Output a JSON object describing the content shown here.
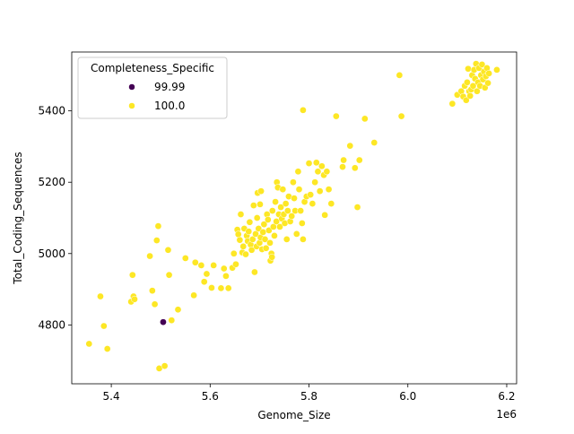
{
  "chart_data": {
    "type": "scatter",
    "xlabel": "Genome_Size",
    "ylabel": "Total_Coding_Sequences",
    "x_offset_label": "1e6",
    "xlim": [
      5.32,
      6.22
    ],
    "ylim": [
      4635,
      5565
    ],
    "x_ticks": [
      5.4,
      5.6,
      5.8,
      6.0,
      6.2
    ],
    "x_tick_labels": [
      "5.4",
      "5.6",
      "5.8",
      "6.0",
      "6.2"
    ],
    "y_ticks": [
      4800,
      5000,
      5200,
      5400
    ],
    "y_tick_labels": [
      "4800",
      "5000",
      "5200",
      "5400"
    ],
    "grid": false,
    "legend": {
      "title": "Completeness_Specific",
      "placement": "upper-left",
      "entries": [
        {
          "label": "99.99",
          "color": "#440154"
        },
        {
          "label": "100.0",
          "color": "#fde725"
        }
      ]
    },
    "series": [
      {
        "name": "99.99",
        "color": "#440154",
        "points": [
          [
            5.505,
            4808
          ]
        ]
      },
      {
        "name": "100.0",
        "color": "#fde725",
        "points": [
          [
            5.355,
            4747
          ],
          [
            5.378,
            4880
          ],
          [
            5.385,
            4797
          ],
          [
            5.392,
            4733
          ],
          [
            5.44,
            4865
          ],
          [
            5.443,
            4940
          ],
          [
            5.445,
            4880
          ],
          [
            5.447,
            4872
          ],
          [
            5.478,
            4993
          ],
          [
            5.483,
            4896
          ],
          [
            5.488,
            4858
          ],
          [
            5.492,
            5037
          ],
          [
            5.495,
            5077
          ],
          [
            5.497,
            4678
          ],
          [
            5.508,
            4685
          ],
          [
            5.515,
            5010
          ],
          [
            5.517,
            4940
          ],
          [
            5.522,
            4813
          ],
          [
            5.535,
            4843
          ],
          [
            5.55,
            4987
          ],
          [
            5.567,
            4883
          ],
          [
            5.57,
            4975
          ],
          [
            5.582,
            4967
          ],
          [
            5.588,
            4921
          ],
          [
            5.593,
            4943
          ],
          [
            5.603,
            4904
          ],
          [
            5.607,
            4967
          ],
          [
            5.622,
            4903
          ],
          [
            5.628,
            4958
          ],
          [
            5.632,
            4937
          ],
          [
            5.637,
            4903
          ],
          [
            5.645,
            4960
          ],
          [
            5.648,
            5000
          ],
          [
            5.652,
            4970
          ],
          [
            5.655,
            5067
          ],
          [
            5.657,
            5054
          ],
          [
            5.66,
            5038
          ],
          [
            5.662,
            5110
          ],
          [
            5.665,
            5003
          ],
          [
            5.667,
            5020
          ],
          [
            5.669,
            5070
          ],
          [
            5.672,
            4998
          ],
          [
            5.674,
            5050
          ],
          [
            5.676,
            5035
          ],
          [
            5.678,
            5062
          ],
          [
            5.68,
            5088
          ],
          [
            5.682,
            5025
          ],
          [
            5.684,
            5010
          ],
          [
            5.686,
            5040
          ],
          [
            5.688,
            5135
          ],
          [
            5.69,
            4948
          ],
          [
            5.692,
            5055
          ],
          [
            5.694,
            5020
          ],
          [
            5.695,
            5100
          ],
          [
            5.696,
            5170
          ],
          [
            5.698,
            5070
          ],
          [
            5.7,
            5030
          ],
          [
            5.701,
            5138
          ],
          [
            5.702,
            5045
          ],
          [
            5.703,
            5175
          ],
          [
            5.705,
            5012
          ],
          [
            5.707,
            5060
          ],
          [
            5.709,
            5082
          ],
          [
            5.711,
            5040
          ],
          [
            5.713,
            5015
          ],
          [
            5.715,
            5110
          ],
          [
            5.717,
            5095
          ],
          [
            5.719,
            5065
          ],
          [
            5.721,
            5030
          ],
          [
            5.722,
            4980
          ],
          [
            5.724,
            5000
          ],
          [
            5.725,
            4990
          ],
          [
            5.726,
            5120
          ],
          [
            5.728,
            5075
          ],
          [
            5.73,
            5050
          ],
          [
            5.732,
            5145
          ],
          [
            5.734,
            5090
          ],
          [
            5.735,
            5200
          ],
          [
            5.737,
            5185
          ],
          [
            5.739,
            5110
          ],
          [
            5.741,
            5075
          ],
          [
            5.743,
            5130
          ],
          [
            5.745,
            5098
          ],
          [
            5.747,
            5180
          ],
          [
            5.749,
            5110
          ],
          [
            5.751,
            5085
          ],
          [
            5.753,
            5140
          ],
          [
            5.755,
            5040
          ],
          [
            5.757,
            5120
          ],
          [
            5.759,
            5160
          ],
          [
            5.762,
            5090
          ],
          [
            5.765,
            5105
          ],
          [
            5.768,
            5200
          ],
          [
            5.77,
            5155
          ],
          [
            5.772,
            5120
          ],
          [
            5.775,
            5055
          ],
          [
            5.778,
            5230
          ],
          [
            5.78,
            5180
          ],
          [
            5.783,
            5120
          ],
          [
            5.786,
            5085
          ],
          [
            5.788,
            5040
          ],
          [
            5.788,
            5402
          ],
          [
            5.791,
            5145
          ],
          [
            5.795,
            5160
          ],
          [
            5.8,
            5253
          ],
          [
            5.803,
            5165
          ],
          [
            5.807,
            5140
          ],
          [
            5.812,
            5200
          ],
          [
            5.815,
            5255
          ],
          [
            5.818,
            5230
          ],
          [
            5.822,
            5175
          ],
          [
            5.826,
            5245
          ],
          [
            5.83,
            5220
          ],
          [
            5.832,
            5108
          ],
          [
            5.836,
            5230
          ],
          [
            5.84,
            5180
          ],
          [
            5.845,
            5140
          ],
          [
            5.855,
            5385
          ],
          [
            5.868,
            5243
          ],
          [
            5.87,
            5262
          ],
          [
            5.883,
            5302
          ],
          [
            5.893,
            5240
          ],
          [
            5.898,
            5130
          ],
          [
            5.902,
            5262
          ],
          [
            5.913,
            5378
          ],
          [
            5.932,
            5311
          ],
          [
            5.983,
            5500
          ],
          [
            5.987,
            5385
          ],
          [
            6.09,
            5420
          ],
          [
            6.1,
            5445
          ],
          [
            6.108,
            5455
          ],
          [
            6.112,
            5440
          ],
          [
            6.115,
            5470
          ],
          [
            6.118,
            5430
          ],
          [
            6.12,
            5480
          ],
          [
            6.122,
            5518
          ],
          [
            6.124,
            5455
          ],
          [
            6.126,
            5442
          ],
          [
            6.128,
            5460
          ],
          [
            6.13,
            5500
          ],
          [
            6.132,
            5470
          ],
          [
            6.134,
            5515
          ],
          [
            6.136,
            5490
          ],
          [
            6.138,
            5532
          ],
          [
            6.14,
            5455
          ],
          [
            6.142,
            5480
          ],
          [
            6.144,
            5520
          ],
          [
            6.146,
            5470
          ],
          [
            6.148,
            5500
          ],
          [
            6.15,
            5530
          ],
          [
            6.152,
            5488
          ],
          [
            6.154,
            5510
          ],
          [
            6.156,
            5465
          ],
          [
            6.158,
            5497
          ],
          [
            6.16,
            5520
          ],
          [
            6.162,
            5478
          ],
          [
            6.164,
            5505
          ],
          [
            6.18,
            5515
          ]
        ]
      }
    ]
  }
}
